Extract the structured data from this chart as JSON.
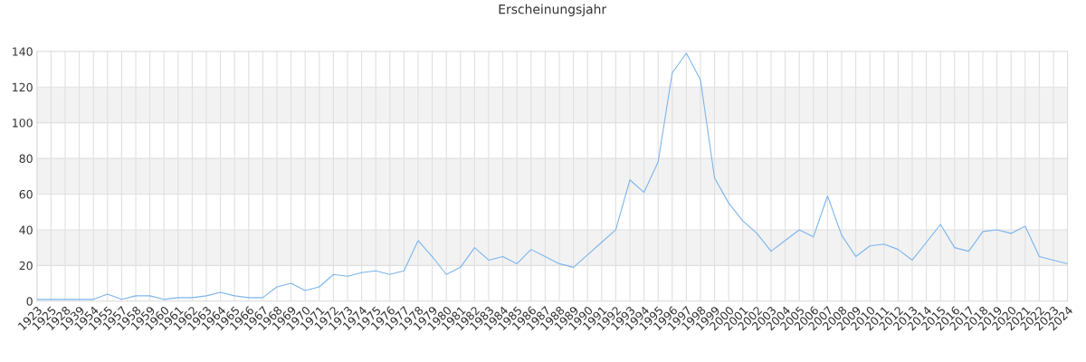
{
  "chart_data": {
    "type": "line",
    "title": "Erscheinungsjahr",
    "categories": [
      "1923",
      "1925",
      "1928",
      "1939",
      "1954",
      "1955",
      "1957",
      "1958",
      "1959",
      "1960",
      "1961",
      "1962",
      "1963",
      "1964",
      "1965",
      "1966",
      "1967",
      "1968",
      "1969",
      "1970",
      "1971",
      "1972",
      "1973",
      "1974",
      "1975",
      "1976",
      "1977",
      "1978",
      "1979",
      "1980",
      "1981",
      "1982",
      "1983",
      "1984",
      "1985",
      "1986",
      "1987",
      "1988",
      "1989",
      "1990",
      "1991",
      "1992",
      "1993",
      "1994",
      "1995",
      "1996",
      "1997",
      "1998",
      "1999",
      "2000",
      "2001",
      "2002",
      "2003",
      "2004",
      "2005",
      "2006",
      "2007",
      "2008",
      "2009",
      "2010",
      "2011",
      "2012",
      "2013",
      "2014",
      "2015",
      "2016",
      "2017",
      "2018",
      "2019",
      "2020",
      "2021",
      "2022",
      "2023",
      "2024"
    ],
    "series": [
      {
        "color": "#7cb5ec",
        "values": [
          1,
          1,
          1,
          1,
          1,
          4,
          1,
          3,
          3,
          1,
          2,
          2,
          3,
          5,
          3,
          2,
          2,
          8,
          10,
          6,
          8,
          15,
          14,
          16,
          17,
          15,
          17,
          34,
          25,
          15,
          19,
          30,
          23,
          25,
          21,
          29,
          25,
          21,
          19,
          26,
          33,
          40,
          68,
          61,
          78,
          128,
          139,
          124,
          69,
          55,
          45,
          38,
          28,
          34,
          40,
          36,
          59,
          37,
          25,
          31,
          32,
          29,
          23,
          33,
          43,
          30,
          28,
          39,
          40,
          38,
          42,
          25,
          23,
          21
        ]
      }
    ],
    "ylim": [
      0,
      140
    ],
    "yticks": [
      0,
      20,
      40,
      60,
      80,
      100,
      120,
      140
    ],
    "bands": [
      {
        "axis": "y",
        "from": 20,
        "to": 40,
        "color": "#f2f2f2"
      },
      {
        "axis": "y",
        "from": 60,
        "to": 80,
        "color": "#f2f2f2"
      },
      {
        "axis": "y",
        "from": 100,
        "to": 120,
        "color": "#f2f2f2"
      }
    ],
    "grid": true,
    "marker": "none",
    "line_style": "solid",
    "legend": false
  }
}
